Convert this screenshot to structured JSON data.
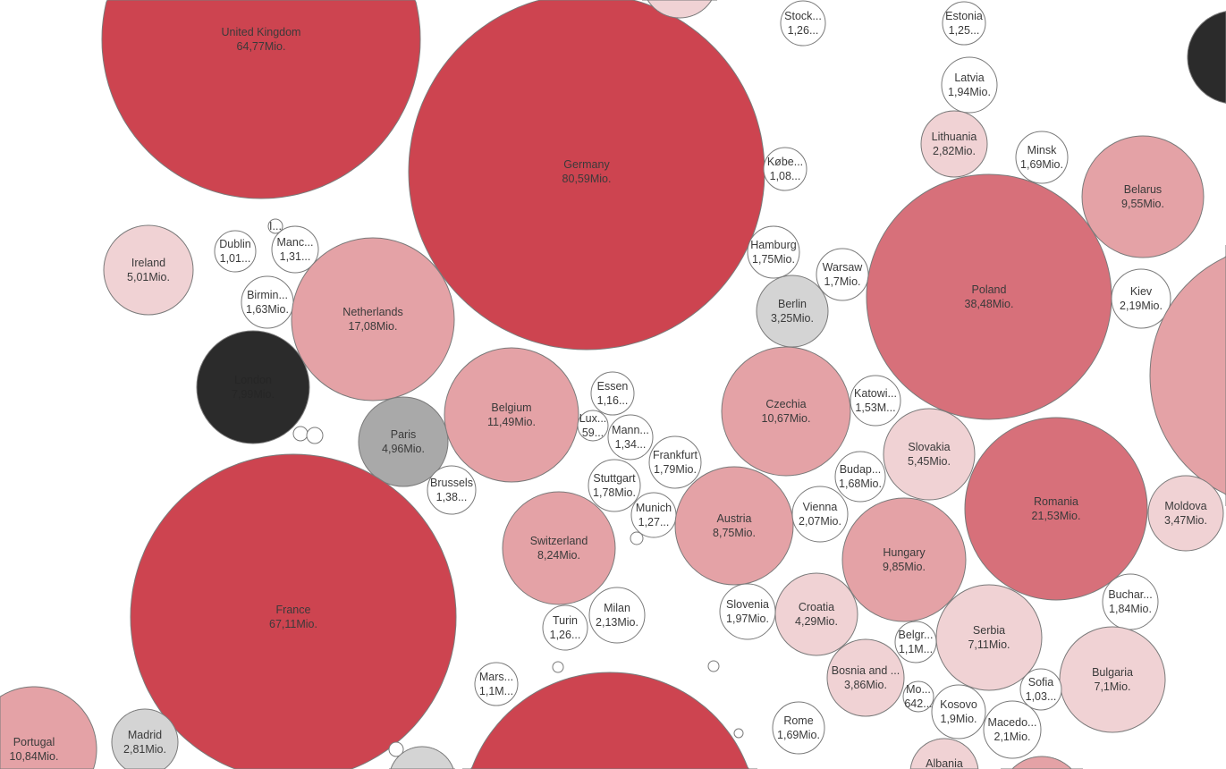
{
  "colors": {
    "dark": "#CD4450",
    "medium": "#D7707A",
    "pink": "#E4A2A6",
    "light": "#F0D2D4",
    "white": "#FFFFFF",
    "lightgray": "#D4D4D4",
    "gray": "#A9A9A9",
    "black": "#2B2B2B"
  },
  "chart_data": {
    "type": "bubble",
    "title": "",
    "unit": "Mio.",
    "items": [
      {
        "name": "United Kingdom",
        "label": "64,77Mio.",
        "value": 64.77,
        "color": "dark"
      },
      {
        "name": "Germany",
        "label": "80,59Mio.",
        "value": 80.59,
        "color": "dark"
      },
      {
        "name": "",
        "label": "",
        "color": "light"
      },
      {
        "name": "Stock...",
        "label": "1,26...",
        "value": 1.26,
        "color": "white"
      },
      {
        "name": "Estonia",
        "label": "1,25...",
        "value": 1.25,
        "color": "white"
      },
      {
        "name": "Latvia",
        "label": "1,94Mio.",
        "value": 1.94,
        "color": "white"
      },
      {
        "name": "Lithuania",
        "label": "2,82Mio.",
        "value": 2.82,
        "color": "light"
      },
      {
        "name": "Minsk",
        "label": "1,69Mio.",
        "value": 1.69,
        "color": "white"
      },
      {
        "name": "Belarus",
        "label": "9,55Mio.",
        "value": 9.55,
        "color": "pink"
      },
      {
        "name": "",
        "label": "",
        "color": "black"
      },
      {
        "name": "Købe...",
        "label": "1,08...",
        "value": 1.08,
        "color": "white"
      },
      {
        "name": "Hamburg",
        "label": "1,75Mio.",
        "value": 1.75,
        "color": "white"
      },
      {
        "name": "Warsaw",
        "label": "1,7Mio.",
        "value": 1.7,
        "color": "white"
      },
      {
        "name": "Berlin",
        "label": "3,25Mio.",
        "value": 3.25,
        "color": "lightgray"
      },
      {
        "name": "Poland",
        "label": "38,48Mio.",
        "value": 38.48,
        "color": "medium"
      },
      {
        "name": "Kiev",
        "label": "2,19Mio.",
        "value": 2.19,
        "color": "white"
      },
      {
        "name": "",
        "label": "",
        "color": "pink"
      },
      {
        "name": "Ireland",
        "label": "5,01Mio.",
        "value": 5.01,
        "color": "light"
      },
      {
        "name": "Dublin",
        "label": "1,01...",
        "value": 1.01,
        "color": "white"
      },
      {
        "name": "I...",
        "label": "",
        "color": "white"
      },
      {
        "name": "Manc...",
        "label": "1,31...",
        "value": 1.31,
        "color": "white"
      },
      {
        "name": "Birmin...",
        "label": "1,63Mio.",
        "value": 1.63,
        "color": "white"
      },
      {
        "name": "Netherlands",
        "label": "17,08Mio.",
        "value": 17.08,
        "color": "pink"
      },
      {
        "name": "London",
        "label": "7,99Mio.",
        "value": 7.99,
        "color": "black"
      },
      {
        "name": "",
        "label": "",
        "color": "white"
      },
      {
        "name": "",
        "label": "",
        "color": "white"
      },
      {
        "name": "Paris",
        "label": "4,96Mio.",
        "value": 4.96,
        "color": "gray"
      },
      {
        "name": "Belgium",
        "label": "11,49Mio.",
        "value": 11.49,
        "color": "pink"
      },
      {
        "name": "Essen",
        "label": "1,16...",
        "value": 1.16,
        "color": "white"
      },
      {
        "name": "Lux...",
        "label": "59...",
        "color": "white"
      },
      {
        "name": "Mann...",
        "label": "1,34...",
        "value": 1.34,
        "color": "white"
      },
      {
        "name": "Frankfurt",
        "label": "1,79Mio.",
        "value": 1.79,
        "color": "white"
      },
      {
        "name": "Brussels",
        "label": "1,38...",
        "value": 1.38,
        "color": "white"
      },
      {
        "name": "Stuttgart",
        "label": "1,78Mio.",
        "value": 1.78,
        "color": "white"
      },
      {
        "name": "Munich",
        "label": "1,27...",
        "value": 1.27,
        "color": "white"
      },
      {
        "name": "",
        "label": "",
        "color": "white"
      },
      {
        "name": "Czechia",
        "label": "10,67Mio.",
        "value": 10.67,
        "color": "pink"
      },
      {
        "name": "Katowi...",
        "label": "1,53M...",
        "value": 1.53,
        "color": "white"
      },
      {
        "name": "Slovakia",
        "label": "5,45Mio.",
        "value": 5.45,
        "color": "light"
      },
      {
        "name": "Budap...",
        "label": "1,68Mio.",
        "value": 1.68,
        "color": "white"
      },
      {
        "name": "Romania",
        "label": "21,53Mio.",
        "value": 21.53,
        "color": "medium"
      },
      {
        "name": "Moldova",
        "label": "3,47Mio.",
        "value": 3.47,
        "color": "light"
      },
      {
        "name": "France",
        "label": "67,11Mio.",
        "value": 67.11,
        "color": "dark"
      },
      {
        "name": "Switzerland",
        "label": "8,24Mio.",
        "value": 8.24,
        "color": "pink"
      },
      {
        "name": "Austria",
        "label": "8,75Mio.",
        "value": 8.75,
        "color": "pink"
      },
      {
        "name": "Vienna",
        "label": "2,07Mio.",
        "value": 2.07,
        "color": "white"
      },
      {
        "name": "Hungary",
        "label": "9,85Mio.",
        "value": 9.85,
        "color": "pink"
      },
      {
        "name": "Milan",
        "label": "2,13Mio.",
        "value": 2.13,
        "color": "white"
      },
      {
        "name": "Turin",
        "label": "1,26...",
        "value": 1.26,
        "color": "white"
      },
      {
        "name": "Slovenia",
        "label": "1,97Mio.",
        "value": 1.97,
        "color": "white"
      },
      {
        "name": "Croatia",
        "label": "4,29Mio.",
        "value": 4.29,
        "color": "light"
      },
      {
        "name": "Buchar...",
        "label": "1,84Mio.",
        "value": 1.84,
        "color": "white"
      },
      {
        "name": "Serbia",
        "label": "7,11Mio.",
        "value": 7.11,
        "color": "light"
      },
      {
        "name": "Belgr...",
        "label": "1,1M...",
        "value": 1.1,
        "color": "white"
      },
      {
        "name": "Bosnia and ...",
        "label": "3,86Mio.",
        "value": 3.86,
        "color": "light"
      },
      {
        "name": "Bulgaria",
        "label": "7,1Mio.",
        "value": 7.1,
        "color": "light"
      },
      {
        "name": "Sofia",
        "label": "1,03...",
        "value": 1.03,
        "color": "white"
      },
      {
        "name": "Mars...",
        "label": "1,1M...",
        "value": 1.1,
        "color": "white"
      },
      {
        "name": "",
        "label": "",
        "color": "white"
      },
      {
        "name": "",
        "label": "",
        "color": "white"
      },
      {
        "name": "",
        "label": "",
        "color": "white"
      },
      {
        "name": "",
        "label": "",
        "color": "white"
      },
      {
        "name": "Mo...",
        "label": "642...",
        "color": "white"
      },
      {
        "name": "Kosovo",
        "label": "1,9Mio.",
        "value": 1.9,
        "color": "white"
      },
      {
        "name": "Macedo...",
        "label": "2,1Mio.",
        "value": 2.1,
        "color": "white"
      },
      {
        "name": "Rome",
        "label": "1,69Mio.",
        "value": 1.69,
        "color": "white"
      },
      {
        "name": "Portugal",
        "label": "10,84Mio.",
        "value": 10.84,
        "color": "pink"
      },
      {
        "name": "Madrid",
        "label": "2,81Mio.",
        "value": 2.81,
        "color": "lightgray"
      },
      {
        "name": "",
        "label": "",
        "color": "lightgray"
      },
      {
        "name": "",
        "label": "",
        "color": "dark"
      },
      {
        "name": "Albania",
        "label": "",
        "color": "light"
      },
      {
        "name": "",
        "label": "",
        "color": "pink"
      }
    ]
  }
}
